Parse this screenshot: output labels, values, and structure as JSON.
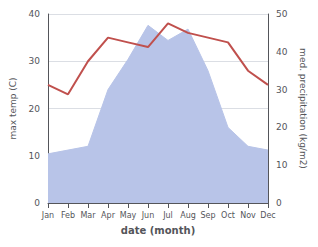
{
  "chart_data": {
    "type": "line",
    "categories": [
      "Jan",
      "Feb",
      "Mar",
      "Apr",
      "May",
      "Jun",
      "Jul",
      "Aug",
      "Sep",
      "Oct",
      "Nov",
      "Dec"
    ],
    "xlabel": "date (month)",
    "ylabel": "max temp (C)",
    "y2label": "med. precipitation (kg/m2)",
    "series": [
      {
        "type": "area",
        "color": "#b8c4e8",
        "axis": "y2",
        "values": [
          13,
          14,
          15,
          30,
          38,
          47,
          43,
          46,
          35,
          20,
          15,
          14
        ]
      },
      {
        "type": "line",
        "color": "#c0504d",
        "values": [
          25,
          23,
          30,
          35,
          34,
          33,
          38,
          36,
          35,
          34,
          28,
          25
        ]
      }
    ],
    "ylim": [
      0,
      40
    ],
    "yticks": [
      0,
      10,
      20,
      30,
      40
    ],
    "y2lim": [
      0,
      50
    ],
    "y2ticks": [
      0,
      10,
      20,
      30,
      40,
      50
    ],
    "grid": true
  }
}
